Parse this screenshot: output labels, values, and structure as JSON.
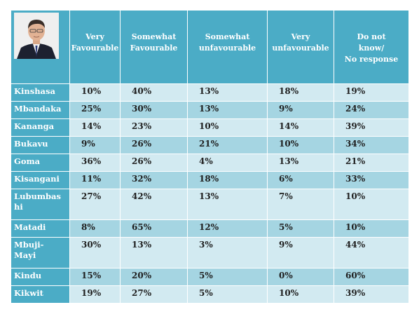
{
  "header": {
    "columns": [
      "Very\nFavourable",
      "Somewhat\nFavourable",
      "Somewhat\nunfavourable",
      "Very\nunfavourable",
      "Do not\nknow/\nNo response"
    ]
  },
  "rows": [
    {
      "city": "Kinshasa",
      "values": [
        "10%",
        "40%",
        "13%",
        "18%",
        "19%"
      ]
    },
    {
      "city": "Mbandaka",
      "values": [
        "25%",
        "30%",
        "13%",
        "9%",
        "24%"
      ]
    },
    {
      "city": "Kananga",
      "values": [
        "14%",
        "23%",
        "10%",
        "14%",
        "39%"
      ]
    },
    {
      "city": "Bukavu",
      "values": [
        "9%",
        "26%",
        "21%",
        "10%",
        "34%"
      ]
    },
    {
      "city": "Goma",
      "values": [
        "36%",
        "26%",
        "4%",
        "13%",
        "21%"
      ]
    },
    {
      "city": "Kisangani",
      "values": [
        "11%",
        "32%",
        "18%",
        "6%",
        "33%"
      ]
    },
    {
      "city": "Lubumbas\nhi",
      "values": [
        "27%",
        "42%",
        "13%",
        "7%",
        "10%"
      ]
    },
    {
      "city": "Matadi",
      "values": [
        "8%",
        "65%",
        "12%",
        "5%",
        "10%"
      ]
    },
    {
      "city": "Mbuji-\nMayi",
      "values": [
        "30%",
        "13%",
        "3%",
        "9%",
        "44%"
      ]
    },
    {
      "city": "Kindu",
      "values": [
        "15%",
        "20%",
        "5%",
        "0%",
        "60%"
      ]
    },
    {
      "city": "Kikwit",
      "values": [
        "19%",
        "27%",
        "5%",
        "10%",
        "39%"
      ]
    }
  ]
}
